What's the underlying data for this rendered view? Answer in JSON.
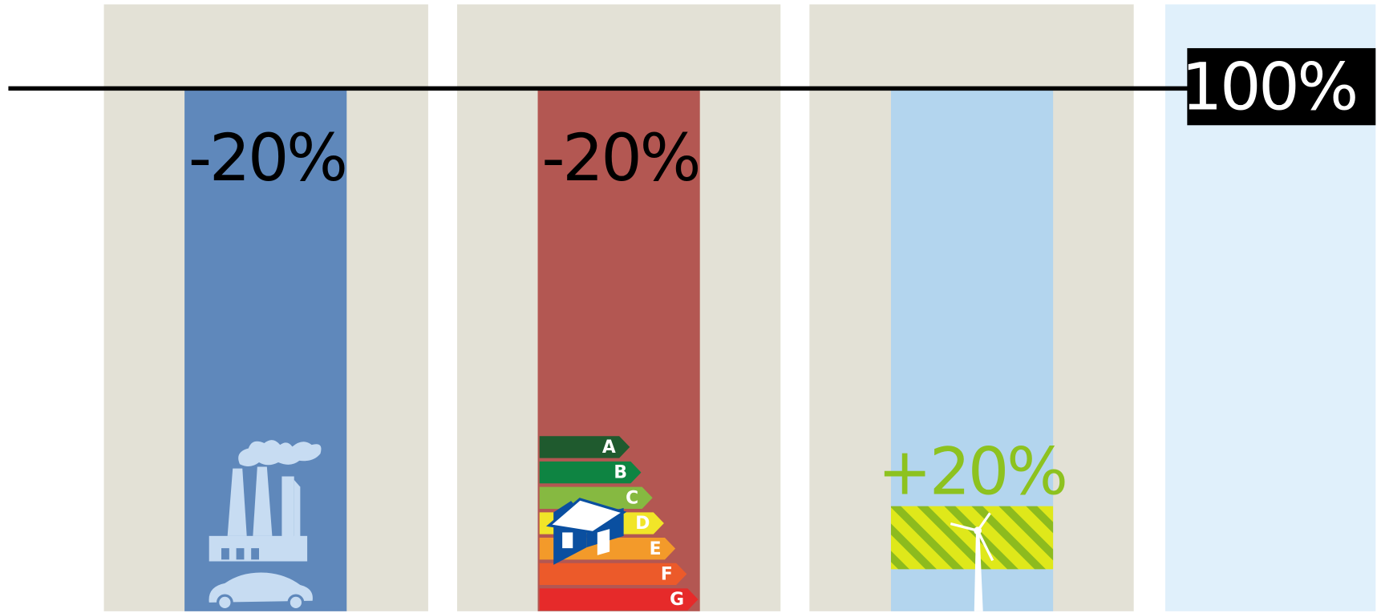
{
  "panels": [
    {
      "label": "-20%"
    },
    {
      "label": "-20%",
      "energy_classes": [
        "A",
        "B",
        "C",
        "D",
        "E",
        "F",
        "G"
      ]
    },
    {
      "label": "+20%"
    }
  ],
  "total": {
    "label": "100%"
  }
}
